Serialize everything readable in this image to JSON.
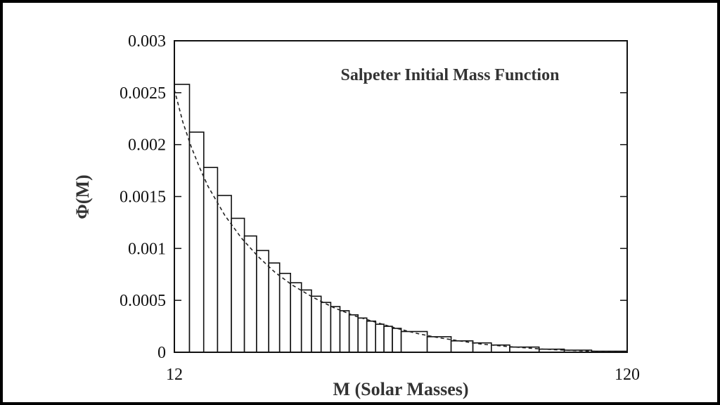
{
  "chart_data": {
    "type": "bar",
    "title": "Salpeter Initial Mass Function",
    "xlabel": "M (Solar Masses)",
    "ylabel": "Φ(M)",
    "xlim": [
      12,
      120
    ],
    "ylim": [
      0,
      0.003
    ],
    "grid": false,
    "x_tick_labels": [
      "12",
      "120"
    ],
    "y_tick_labels": [
      "0",
      "0.0005",
      "0.001",
      "0.0015",
      "0.002",
      "0.0025",
      "0.003"
    ],
    "y_ticks": [
      0,
      0.0005,
      0.001,
      0.0015,
      0.002,
      0.0025,
      0.003
    ],
    "bins": [
      {
        "x0": 12.0,
        "x1": 15.6,
        "value": 0.00258
      },
      {
        "x0": 15.6,
        "x1": 19.0,
        "value": 0.00212
      },
      {
        "x0": 19.0,
        "x1": 22.3,
        "value": 0.00178
      },
      {
        "x0": 22.3,
        "x1": 25.6,
        "value": 0.00151
      },
      {
        "x0": 25.6,
        "x1": 28.7,
        "value": 0.00129
      },
      {
        "x0": 28.7,
        "x1": 31.6,
        "value": 0.00112
      },
      {
        "x0": 31.6,
        "x1": 34.5,
        "value": 0.00098
      },
      {
        "x0": 34.5,
        "x1": 37.1,
        "value": 0.00086
      },
      {
        "x0": 37.1,
        "x1": 39.7,
        "value": 0.00076
      },
      {
        "x0": 39.7,
        "x1": 42.3,
        "value": 0.00067
      },
      {
        "x0": 42.3,
        "x1": 44.7,
        "value": 0.0006
      },
      {
        "x0": 44.7,
        "x1": 47.0,
        "value": 0.00054
      },
      {
        "x0": 47.0,
        "x1": 49.3,
        "value": 0.00048
      },
      {
        "x0": 49.3,
        "x1": 51.5,
        "value": 0.00044
      },
      {
        "x0": 51.5,
        "x1": 53.7,
        "value": 0.0004
      },
      {
        "x0": 53.7,
        "x1": 55.8,
        "value": 0.00036
      },
      {
        "x0": 55.8,
        "x1": 57.9,
        "value": 0.00033
      },
      {
        "x0": 57.9,
        "x1": 60.0,
        "value": 0.0003
      },
      {
        "x0": 60.0,
        "x1": 62.0,
        "value": 0.00027
      },
      {
        "x0": 62.0,
        "x1": 64.0,
        "value": 0.00025
      },
      {
        "x0": 64.0,
        "x1": 66.1,
        "value": 0.00023
      },
      {
        "x0": 66.1,
        "x1": 72.3,
        "value": 0.0002
      },
      {
        "x0": 72.3,
        "x1": 78.0,
        "value": 0.00015
      },
      {
        "x0": 78.0,
        "x1": 83.2,
        "value": 0.00011
      },
      {
        "x0": 83.2,
        "x1": 87.6,
        "value": 9e-05
      },
      {
        "x0": 87.6,
        "x1": 92.0,
        "value": 7e-05
      },
      {
        "x0": 92.0,
        "x1": 99.0,
        "value": 5e-05
      },
      {
        "x0": 99.0,
        "x1": 105.0,
        "value": 3e-05
      },
      {
        "x0": 105.0,
        "x1": 111.5,
        "value": 2e-05
      },
      {
        "x0": 111.5,
        "x1": 120.0,
        "value": 1e-05
      }
    ],
    "fit_curve": {
      "style": "dashed",
      "points": [
        [
          12,
          0.00253
        ],
        [
          14,
          0.00222
        ],
        [
          16,
          0.00198
        ],
        [
          18,
          0.00178
        ],
        [
          20,
          0.0016
        ],
        [
          24,
          0.00132
        ],
        [
          28,
          0.0011
        ],
        [
          32,
          0.00092
        ],
        [
          36,
          0.00077
        ],
        [
          40,
          0.00065
        ],
        [
          45,
          0.00053
        ],
        [
          50,
          0.00043
        ],
        [
          55,
          0.00035
        ],
        [
          60,
          0.00029
        ],
        [
          65,
          0.00023
        ],
        [
          70,
          0.00018
        ],
        [
          75,
          0.00014
        ],
        [
          80,
          0.00011
        ],
        [
          85,
          8e-05
        ],
        [
          90,
          6e-05
        ],
        [
          95,
          4.5e-05
        ],
        [
          100,
          3e-05
        ],
        [
          105,
          2e-05
        ],
        [
          110,
          1.2e-05
        ],
        [
          115,
          6e-06
        ],
        [
          120,
          3e-06
        ]
      ]
    }
  }
}
